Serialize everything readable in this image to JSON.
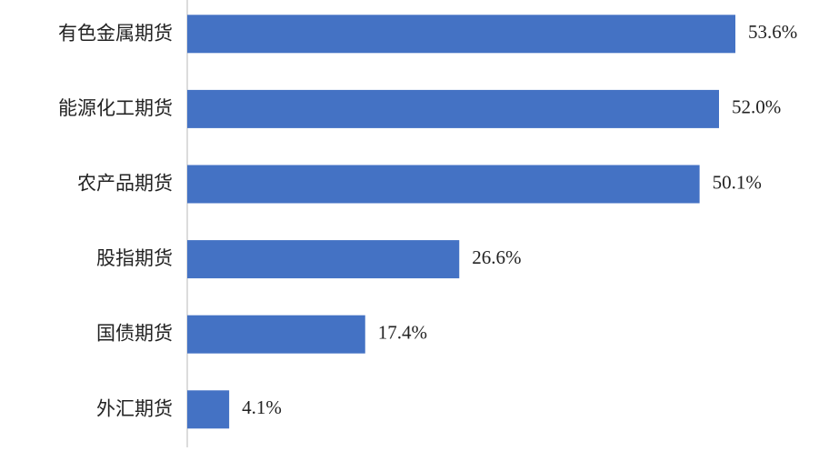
{
  "chart_data": {
    "type": "hbar",
    "categories": [
      "有色金属期货",
      "能源化工期货",
      "农产品期货",
      "股指期货",
      "国债期货",
      "外汇期货"
    ],
    "values": [
      53.6,
      52.0,
      50.1,
      26.6,
      17.4,
      4.1
    ],
    "value_labels": [
      "53.6%",
      "52.0%",
      "50.1%",
      "26.6%",
      "17.4%",
      "4.1%"
    ],
    "color": "#4472c4"
  }
}
